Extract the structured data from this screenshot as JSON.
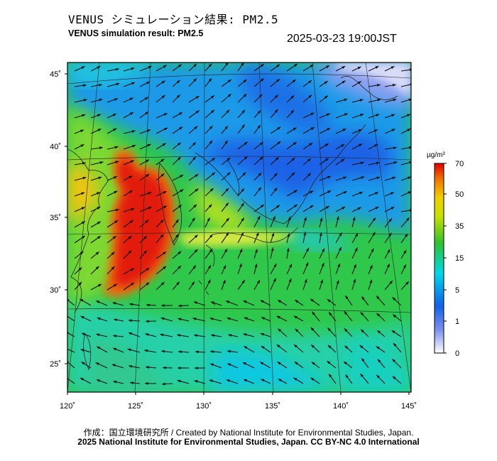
{
  "header": {
    "title_jp": "VENUS シミュレーション結果: PM2.5",
    "title_en": "VENUS simulation result: PM2.5",
    "timestamp": "2025-03-23 19:00JST"
  },
  "map": {
    "lon_range": [
      120,
      145
    ],
    "lat_range": [
      23,
      46
    ],
    "lon_ticks": [
      "120˚",
      "125˚",
      "130˚",
      "135˚",
      "140˚",
      "145˚"
    ],
    "lat_ticks": [
      "45˚",
      "40˚",
      "35˚",
      "30˚",
      "25˚"
    ],
    "high_concentration_region": "Yellow Sea / East China Sea (red, >50 µg/m³)",
    "wind_vectors": "shown"
  },
  "colorbar": {
    "unit": "µg/m³",
    "labels": [
      "70",
      "50",
      "35",
      "15",
      "5",
      "1",
      "0"
    ],
    "colors": [
      "#e00000",
      "#f07000",
      "#f0d000",
      "#30c030",
      "#00d8e8",
      "#1060e8",
      "#8090f0",
      "#ffffff"
    ]
  },
  "footer": {
    "credit": "作成：国立環境研究所 / Created by National Institute for Environmental Studies, Japan.",
    "license": "2025 National Institute for Environmental Studies, Japan. CC BY-NC 4.0 International"
  }
}
